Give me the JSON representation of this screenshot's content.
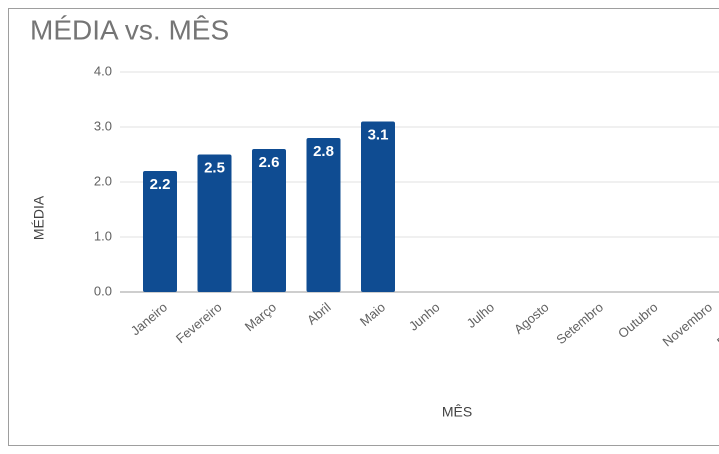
{
  "chart_data": {
    "type": "bar",
    "title": "MÉDIA vs. MÊS",
    "x_label": "MÊS",
    "y_label": "MÉDIA",
    "categories": [
      "Janeiro",
      "Fevereiro",
      "Março",
      "Abril",
      "Maio",
      "Junho",
      "Julho",
      "Agosto",
      "Setembro",
      "Outubro",
      "Novembro",
      "Dezembro"
    ],
    "values": [
      2.2,
      2.5,
      2.6,
      2.8,
      3.1,
      null,
      null,
      null,
      null,
      null,
      null,
      null
    ],
    "color": "#0f4c92",
    "ylim": [
      0,
      4
    ],
    "yticks": [
      {
        "value": 0,
        "label": "0.0"
      },
      {
        "value": 1,
        "label": "1.0"
      },
      {
        "value": 2,
        "label": "2.0"
      },
      {
        "value": 3,
        "label": "3.0"
      },
      {
        "value": 4,
        "label": "4.0"
      }
    ],
    "grid": true
  }
}
